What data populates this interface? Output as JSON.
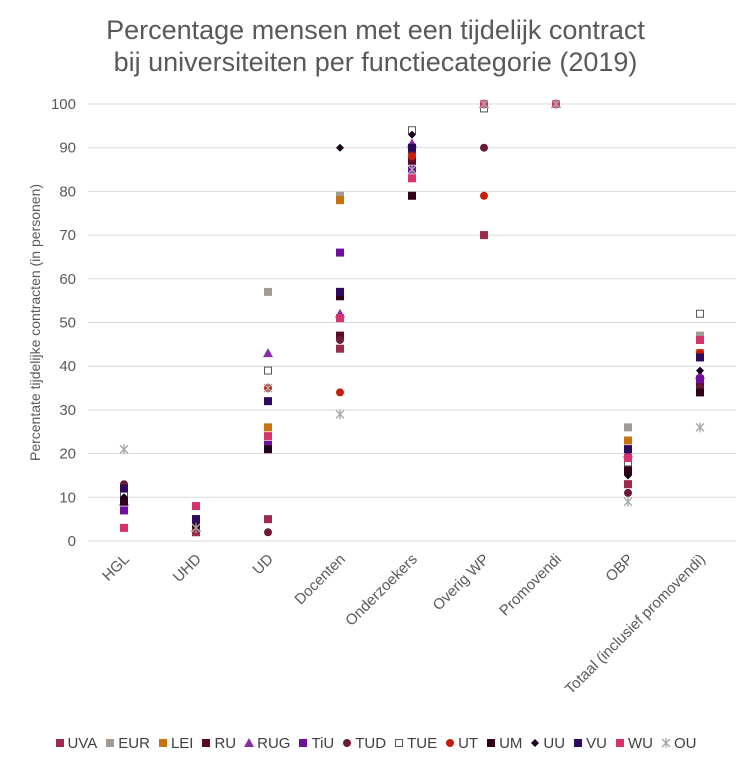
{
  "chart_data": {
    "type": "scatter",
    "title_lines": [
      "Percentage mensen met een tijdelijk contract",
      "bij universiteiten per functiecategorie (2019)"
    ],
    "ylabel": "Percentate tijdelijke contracten (in personen)",
    "xlabel": "",
    "ylim": [
      0,
      100
    ],
    "yticks": [
      0,
      10,
      20,
      30,
      40,
      50,
      60,
      70,
      80,
      90,
      100
    ],
    "grid": true,
    "legend_position": "bottom",
    "categories": [
      "HGL",
      "UHD",
      "UD",
      "Docenten",
      "Onderzoekers",
      "Overig WP",
      "Promovendi",
      "OBP",
      "Totaal (inclusief promovendi)"
    ],
    "series": [
      {
        "name": "UVA",
        "marker": "square",
        "color": "#9E2A4E",
        "values": [
          10,
          2,
          5,
          44,
          88,
          70,
          100,
          13,
          43
        ]
      },
      {
        "name": "EUR",
        "marker": "square",
        "color": "#A29A94",
        "values": [
          11,
          4,
          57,
          79,
          89,
          99,
          100,
          26,
          47
        ]
      },
      {
        "name": "LEI",
        "marker": "square",
        "color": "#C7710F",
        "values": [
          11,
          3,
          26,
          78,
          88,
          100,
          100,
          23,
          43
        ]
      },
      {
        "name": "RU",
        "marker": "square",
        "color": "#5C0A2A",
        "values": [
          12,
          3,
          22,
          47,
          87,
          100,
          100,
          17,
          36
        ]
      },
      {
        "name": "RUG",
        "marker": "triangle",
        "color": "#8A2BA8",
        "values": [
          9,
          3,
          43,
          52,
          91,
          100,
          100,
          20,
          38
        ]
      },
      {
        "name": "TiU",
        "marker": "square",
        "color": "#6F0F9E",
        "values": [
          7,
          5,
          22,
          66,
          85,
          100,
          100,
          21,
          37
        ]
      },
      {
        "name": "TUD",
        "marker": "circle",
        "color": "#6B1B35",
        "values": [
          13,
          3,
          2,
          46,
          89,
          90,
          100,
          11,
          35
        ]
      },
      {
        "name": "TUE",
        "marker": "open-square",
        "color": "#595959",
        "values": [
          11,
          3,
          39,
          57,
          94,
          99,
          100,
          18,
          52
        ]
      },
      {
        "name": "UT",
        "marker": "circle",
        "color": "#C81D0D",
        "values": [
          12,
          3,
          35,
          34,
          88,
          79,
          100,
          19,
          43
        ]
      },
      {
        "name": "UM",
        "marker": "square",
        "color": "#33001A",
        "values": [
          9,
          4,
          21,
          56,
          79,
          100,
          100,
          16,
          34
        ]
      },
      {
        "name": "UU",
        "marker": "diamond",
        "color": "#1A001A",
        "values": [
          10,
          3,
          21,
          90,
          93,
          100,
          100,
          15,
          39
        ]
      },
      {
        "name": "VU",
        "marker": "square",
        "color": "#2E0A5E",
        "values": [
          12,
          5,
          32,
          57,
          90,
          100,
          100,
          21,
          42
        ]
      },
      {
        "name": "WU",
        "marker": "square",
        "color": "#D6336C",
        "values": [
          3,
          8,
          24,
          51,
          83,
          100,
          100,
          19,
          46
        ]
      },
      {
        "name": "OU",
        "marker": "asterisk",
        "color": "#A6A6A6",
        "values": [
          21,
          3,
          35,
          29,
          85,
          100,
          100,
          9,
          26
        ]
      }
    ]
  }
}
